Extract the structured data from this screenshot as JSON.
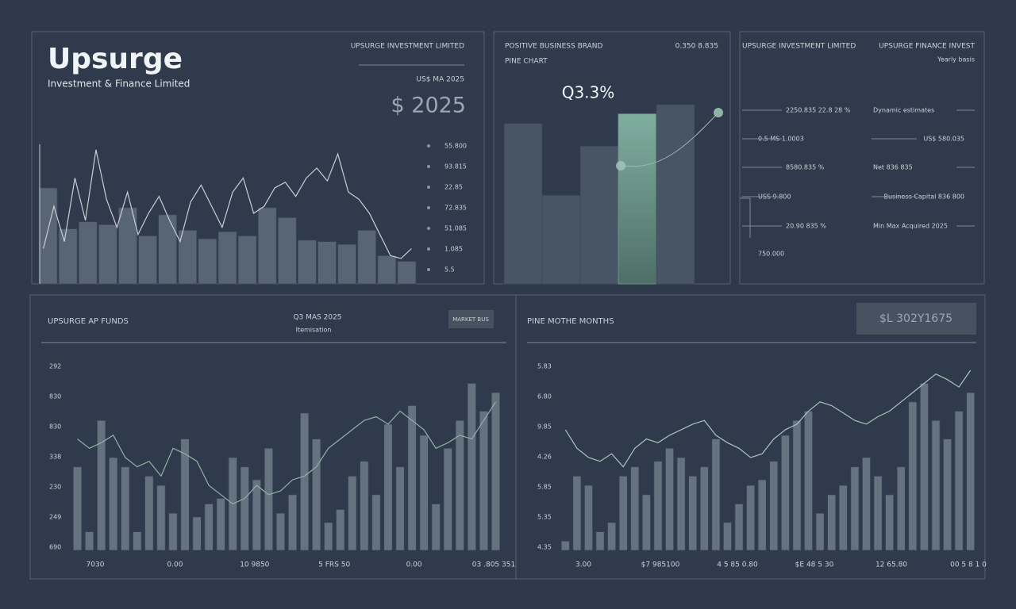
{
  "header": {
    "title": "Upsurge",
    "subtitle": "Investment & Finance Limited"
  },
  "summary": {
    "title": "UPSURGE INVESTMENT LIMITED",
    "title_right": "UPSURGE FINANCE INVEST",
    "note": "Yearly basis",
    "rows": [
      [
        "2250.835  22.8 28 %",
        "Dynamic estimates"
      ],
      [
        "0.5 MS 1.0003",
        "US$ 580.035"
      ],
      [
        "8580.835 %",
        "Net 836 835"
      ],
      [
        "USS 9.800",
        "Business Capital 836 800"
      ],
      [
        "20.90 835 %",
        "Min Max Acquired 2025"
      ],
      [
        "750.000"
      ]
    ]
  },
  "chart_data": [
    {
      "type": "bar",
      "company": "UPSURGE INVESTMENT LIMITED",
      "period": "US$ MA 2025",
      "headline": "$ 2025",
      "side_values": [
        "55.800",
        "93.815",
        "22.85",
        "72.835",
        "51.085",
        "1.085",
        "5.5"
      ],
      "ylim": [
        0,
        100
      ],
      "series": [
        {
          "type": "bar",
          "color": "#5d6a7a",
          "values": [
            68,
            39,
            44,
            42,
            54,
            34,
            49,
            38,
            32,
            37,
            34,
            54,
            47,
            31,
            30,
            28,
            38,
            20,
            16
          ]
        },
        {
          "type": "line",
          "color": "#c8cdd3",
          "values": [
            25,
            55,
            30,
            75,
            45,
            95,
            60,
            40,
            65,
            35,
            50,
            62,
            45,
            30,
            58,
            70,
            55,
            40,
            65,
            75,
            50,
            55,
            68,
            72,
            62,
            75,
            82,
            73,
            92,
            65,
            60,
            50,
            35,
            20,
            18,
            25
          ]
        }
      ]
    },
    {
      "type": "bar",
      "title": "POSITIVE BUSINESS BRAND",
      "corner": "0.350 8.835",
      "subtitle": "PINE CHART",
      "annotation": "Q3.3%",
      "ylim": [
        0,
        100
      ],
      "highlight": 3,
      "highlight_color": "#6f9a8c",
      "series": [
        {
          "type": "bar",
          "color": "#4b5868",
          "values": [
            85,
            47,
            73,
            90,
            95
          ]
        }
      ]
    },
    {
      "type": "bar",
      "title": "UPSURGE AP FUNDS",
      "period": "Q3 MAS 2025",
      "note": "Itemisation",
      "button": "MARKET BUS",
      "ylabels": [
        "292",
        "830",
        "830",
        "338",
        "230",
        "249",
        "690"
      ],
      "xlabels": [
        "7030",
        "0.00",
        "10 9850",
        "5 FRS 50",
        "0.00",
        "03 .805 351"
      ],
      "ylim": [
        0,
        100
      ],
      "series": [
        {
          "type": "bar",
          "color": "#6b7886",
          "values": [
            45,
            10,
            70,
            50,
            45,
            10,
            40,
            35,
            20,
            60,
            18,
            25,
            28,
            50,
            45,
            38,
            55,
            20,
            30,
            74,
            60,
            15,
            22,
            40,
            48,
            30,
            68,
            45,
            78,
            62,
            25,
            55,
            70,
            90,
            75,
            85
          ]
        },
        {
          "type": "line",
          "color": "#8fb3a6",
          "values": [
            60,
            55,
            58,
            62,
            50,
            45,
            48,
            40,
            55,
            52,
            48,
            35,
            30,
            25,
            28,
            35,
            30,
            32,
            38,
            40,
            45,
            55,
            60,
            65,
            70,
            72,
            68,
            75,
            70,
            65,
            55,
            58,
            62,
            60,
            70,
            80
          ]
        }
      ]
    },
    {
      "type": "bar",
      "title": "PINE MOTHE MONTHS",
      "button": "$L 302Y1675",
      "ylabels": [
        "5.83",
        "6.80",
        "9.85",
        "4.26",
        "5.85",
        "5.35",
        "4.35"
      ],
      "xlabels": [
        "3.00",
        "$7 985100",
        "4 5 85 0.80",
        "$E 48 5 30",
        "12 65.80",
        "00 5 8 1 0"
      ],
      "ylim": [
        0,
        100
      ],
      "series": [
        {
          "type": "bar",
          "color": "#6b7886",
          "values": [
            5,
            40,
            35,
            10,
            15,
            40,
            45,
            30,
            48,
            55,
            50,
            40,
            45,
            60,
            15,
            25,
            35,
            38,
            48,
            62,
            70,
            75,
            20,
            30,
            35,
            45,
            50,
            40,
            30,
            45,
            80,
            90,
            70,
            60,
            75,
            85
          ]
        },
        {
          "type": "line",
          "color": "#a9c4ba",
          "values": [
            65,
            55,
            50,
            48,
            52,
            45,
            55,
            60,
            58,
            62,
            65,
            68,
            70,
            62,
            58,
            55,
            50,
            52,
            60,
            65,
            68,
            75,
            80,
            78,
            74,
            70,
            68,
            72,
            75,
            80,
            85,
            90,
            95,
            92,
            88,
            97
          ]
        }
      ]
    }
  ]
}
